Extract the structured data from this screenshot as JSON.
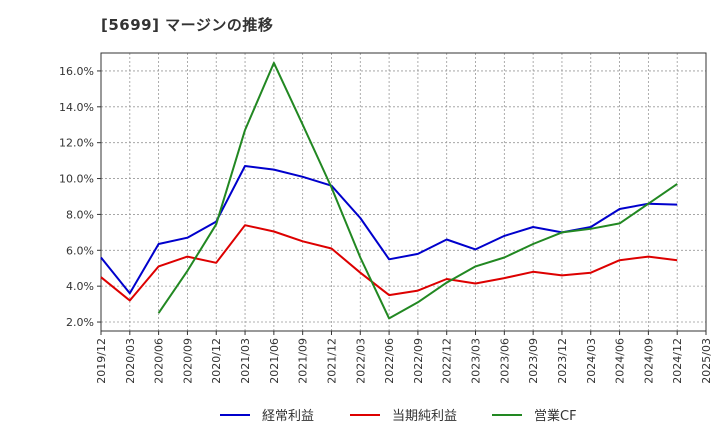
{
  "chart_data": {
    "type": "line",
    "title": "[5699]  マージンの推移",
    "xlabel": "",
    "ylabel": "",
    "x": [
      "2019/12",
      "2020/03",
      "2020/06",
      "2020/09",
      "2020/12",
      "2021/03",
      "2021/06",
      "2021/09",
      "2021/12",
      "2022/03",
      "2022/06",
      "2022/09",
      "2022/12",
      "2023/03",
      "2023/06",
      "2023/09",
      "2023/12",
      "2024/03",
      "2024/06",
      "2024/09",
      "2024/12",
      "2025/03"
    ],
    "y_ticks": [
      "2.0%",
      "4.0%",
      "6.0%",
      "8.0%",
      "10.0%",
      "12.0%",
      "14.0%",
      "16.0%"
    ],
    "y_tick_values": [
      2,
      4,
      6,
      8,
      10,
      12,
      14,
      16
    ],
    "ylim": [
      1.5,
      17.0
    ],
    "grid": true,
    "legend_position": "bottom",
    "series": [
      {
        "name": "経常利益",
        "color": "#0000cc",
        "values": [
          5.6,
          3.6,
          6.35,
          6.7,
          7.6,
          10.7,
          10.5,
          10.1,
          9.6,
          7.8,
          5.5,
          5.8,
          6.6,
          6.05,
          6.8,
          7.3,
          7.0,
          7.3,
          8.3,
          8.6,
          8.55,
          null
        ]
      },
      {
        "name": "当期純利益",
        "color": "#dd0000",
        "values": [
          4.5,
          3.2,
          5.1,
          5.65,
          5.3,
          7.4,
          7.05,
          6.5,
          6.1,
          4.75,
          3.5,
          3.75,
          4.4,
          4.15,
          4.45,
          4.8,
          4.6,
          4.75,
          5.45,
          5.65,
          5.45,
          null
        ]
      },
      {
        "name": "営業CF",
        "color": "#228822",
        "values": [
          null,
          null,
          2.5,
          4.85,
          7.45,
          12.7,
          16.45,
          13.0,
          9.5,
          5.6,
          2.2,
          3.1,
          4.2,
          5.1,
          5.6,
          6.35,
          7.0,
          7.2,
          7.5,
          8.6,
          9.7,
          null
        ]
      }
    ]
  }
}
